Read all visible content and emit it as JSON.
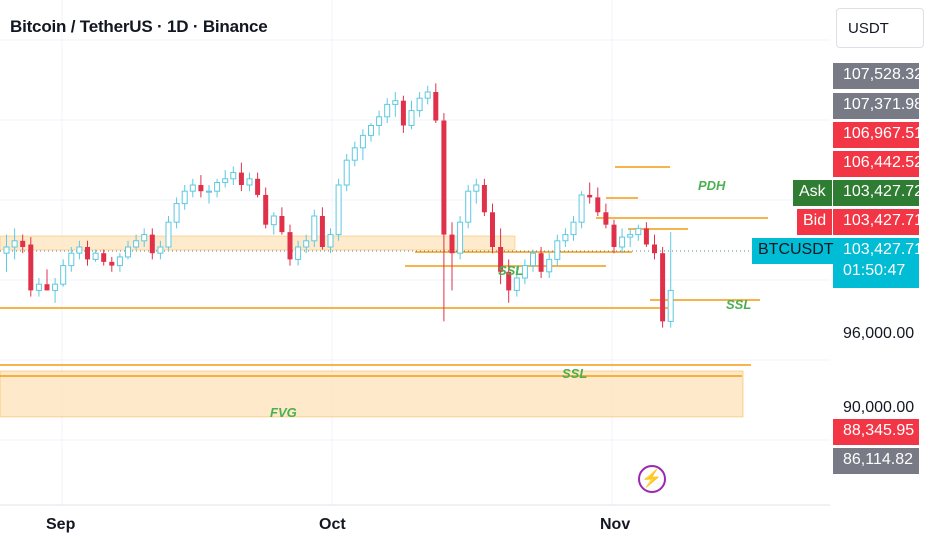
{
  "header": {
    "title": "Bitcoin / TetherUS · 1D · Binance",
    "currency": "USDT"
  },
  "price_labels": [
    {
      "text": "107,528.32",
      "color": "#787b86"
    },
    {
      "text": "107,371.98",
      "color": "#787b86"
    },
    {
      "text": "106,967.51",
      "color": "#f23645"
    },
    {
      "text": "106,442.52",
      "color": "#f23645"
    },
    {
      "text": "103,427.72",
      "color": "#2e7d32"
    },
    {
      "text": "103,427.71",
      "color": "#f23645"
    },
    {
      "text": "103,427.71",
      "color": "#00bcd4"
    },
    {
      "text": "88,345.95",
      "color": "#f23645"
    },
    {
      "text": "86,114.82",
      "color": "#787b86"
    }
  ],
  "countdown": "01:50:47",
  "tags": {
    "ask": "Ask",
    "bid": "Bid",
    "symbol": "BTCUSDT"
  },
  "axis_ticks": [
    "96,000.00",
    "90,000.00"
  ],
  "x_labels": [
    "Sep",
    "Oct",
    "Nov"
  ],
  "annotations": {
    "pdh": "PDH",
    "ssl": "SSL",
    "fvg": "FVG"
  },
  "icons": {
    "alert": "lightning-icon"
  },
  "colors": {
    "up": "#5dc9e2",
    "down": "#e0314b",
    "level": "#f39c12",
    "zone": "#fde3b8",
    "text_green": "#4caf50"
  },
  "chart_data": {
    "type": "candlestick",
    "title": "Bitcoin / TetherUS · 1D · Binance",
    "x_ticks": [
      "Sep",
      "Oct",
      "Nov"
    ],
    "y_ticks": [
      96000,
      90000
    ],
    "candles": [
      [
        101.5,
        103.0,
        100.0,
        102.0
      ],
      [
        102.0,
        103.5,
        101.0,
        102.5
      ],
      [
        102.5,
        103.0,
        101.5,
        102.0
      ],
      [
        102.2,
        102.8,
        98.0,
        98.5
      ],
      [
        98.5,
        99.5,
        98.0,
        99.0
      ],
      [
        99.0,
        100.2,
        98.5,
        98.5
      ],
      [
        98.5,
        99.5,
        97.5,
        99.0
      ],
      [
        99.0,
        101.0,
        98.8,
        100.5
      ],
      [
        100.5,
        102.0,
        100.0,
        101.5
      ],
      [
        101.5,
        102.5,
        101.0,
        102.0
      ],
      [
        102.0,
        102.5,
        100.5,
        101.0
      ],
      [
        101.0,
        101.8,
        100.8,
        101.5
      ],
      [
        101.5,
        101.8,
        100.5,
        100.8
      ],
      [
        100.8,
        101.2,
        100.0,
        100.5
      ],
      [
        100.5,
        101.5,
        100.0,
        101.2
      ],
      [
        101.2,
        102.5,
        101.0,
        102.0
      ],
      [
        102.0,
        103.0,
        101.8,
        102.5
      ],
      [
        102.5,
        103.5,
        102.0,
        103.0
      ],
      [
        103.0,
        103.5,
        101.0,
        101.5
      ],
      [
        101.5,
        102.5,
        101.0,
        102.0
      ],
      [
        102.0,
        104.5,
        101.8,
        104.0
      ],
      [
        104.0,
        106.0,
        103.5,
        105.5
      ],
      [
        105.5,
        107.0,
        105.0,
        106.5
      ],
      [
        106.5,
        107.5,
        106.0,
        107.0
      ],
      [
        107.0,
        107.8,
        106.0,
        106.5
      ],
      [
        106.5,
        107.0,
        105.5,
        106.5
      ],
      [
        106.5,
        107.5,
        106.0,
        107.2
      ],
      [
        107.2,
        108.2,
        106.8,
        107.5
      ],
      [
        107.5,
        108.5,
        107.0,
        108.0
      ],
      [
        108.0,
        108.8,
        106.5,
        107.0
      ],
      [
        107.0,
        108.0,
        106.5,
        107.5
      ],
      [
        107.5,
        108.0,
        106.0,
        106.2
      ],
      [
        106.2,
        106.8,
        103.5,
        103.8
      ],
      [
        103.8,
        104.8,
        103.0,
        104.5
      ],
      [
        104.5,
        105.2,
        103.0,
        103.2
      ],
      [
        103.2,
        103.8,
        100.5,
        101.0
      ],
      [
        101.0,
        102.5,
        100.5,
        102.0
      ],
      [
        102.0,
        103.0,
        101.5,
        102.5
      ],
      [
        102.5,
        105.0,
        102.0,
        104.5
      ],
      [
        104.5,
        105.2,
        101.8,
        102.0
      ],
      [
        102.0,
        103.5,
        101.5,
        103.0
      ],
      [
        103.0,
        107.5,
        102.5,
        107.0
      ],
      [
        107.0,
        109.5,
        106.5,
        109.0
      ],
      [
        109.0,
        110.5,
        108.5,
        110.0
      ],
      [
        110.0,
        111.5,
        109.0,
        111.0
      ],
      [
        111.0,
        112.0,
        110.5,
        111.8
      ],
      [
        111.8,
        113.0,
        111.0,
        112.5
      ],
      [
        112.5,
        114.0,
        112.0,
        113.5
      ],
      [
        113.5,
        114.5,
        112.5,
        113.8
      ],
      [
        113.8,
        114.2,
        111.2,
        111.8
      ],
      [
        111.8,
        113.8,
        111.5,
        113.0
      ],
      [
        113.0,
        114.5,
        112.5,
        114.0
      ],
      [
        114.0,
        115.0,
        113.5,
        114.5
      ],
      [
        114.5,
        115.2,
        112.0,
        112.2
      ],
      [
        112.2,
        112.8,
        96.0,
        103.0
      ],
      [
        103.0,
        104.0,
        98.5,
        101.5
      ],
      [
        101.5,
        104.5,
        101.0,
        104.0
      ],
      [
        104.0,
        107.0,
        103.5,
        106.5
      ],
      [
        106.5,
        107.5,
        105.5,
        107.0
      ],
      [
        107.0,
        107.5,
        104.5,
        104.8
      ],
      [
        104.8,
        105.5,
        101.5,
        102.0
      ],
      [
        102.0,
        103.5,
        99.0,
        100.0
      ],
      [
        100.0,
        101.0,
        97.5,
        98.5
      ],
      [
        98.5,
        100.5,
        98.0,
        99.5
      ],
      [
        99.5,
        101.0,
        99.0,
        100.5
      ],
      [
        100.5,
        101.8,
        100.0,
        101.5
      ],
      [
        101.5,
        102.0,
        99.5,
        100.0
      ],
      [
        100.0,
        101.5,
        99.5,
        101.0
      ],
      [
        101.0,
        103.0,
        100.5,
        102.5
      ],
      [
        102.5,
        103.5,
        102.0,
        103.0
      ],
      [
        103.0,
        104.5,
        102.5,
        104.0
      ],
      [
        104.0,
        106.5,
        103.5,
        106.2
      ],
      [
        106.2,
        107.2,
        105.5,
        106.0
      ],
      [
        106.0,
        106.8,
        104.5,
        104.8
      ],
      [
        104.8,
        105.5,
        103.5,
        103.8
      ],
      [
        103.8,
        104.2,
        101.5,
        102.0
      ],
      [
        102.0,
        103.5,
        101.5,
        102.8
      ],
      [
        102.8,
        103.5,
        102.0,
        103.0
      ],
      [
        103.0,
        103.8,
        102.5,
        103.5
      ],
      [
        103.5,
        104.0,
        102.0,
        102.2
      ],
      [
        102.2,
        103.0,
        101.0,
        101.5
      ],
      [
        101.5,
        102.0,
        95.5,
        96.0
      ],
      [
        96.0,
        103.2,
        95.5,
        98.5
      ]
    ],
    "horizontal_levels": [
      {
        "label": "PDH",
        "price": 103.8
      },
      {
        "label": "SSL",
        "price": 97.3
      },
      {
        "label": "SSL",
        "price": 95.2
      },
      {
        "label": "SSL",
        "price": 93.5
      }
    ],
    "zones": [
      {
        "label": "FVG",
        "from": 88.3,
        "to": 92.0
      }
    ]
  }
}
